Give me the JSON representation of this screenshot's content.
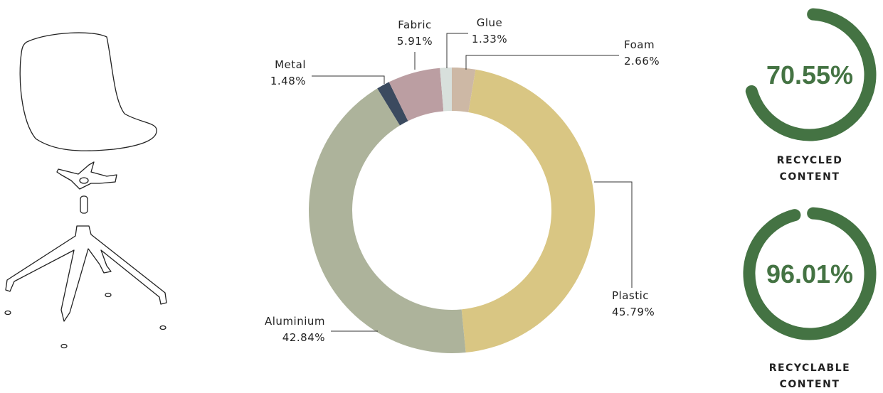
{
  "chart_data": [
    {
      "type": "donut",
      "categories": [
        "Foam",
        "Plastic",
        "Aluminium",
        "Metal",
        "Fabric",
        "Glue"
      ],
      "values": [
        2.66,
        45.79,
        42.84,
        1.48,
        5.91,
        1.33
      ],
      "value_labels": [
        "2.66%",
        "45.79%",
        "42.84%",
        "1.48%",
        "5.91%",
        "1.33%"
      ],
      "colors": [
        "#cdb8a5",
        "#d9c683",
        "#adb39b",
        "#3b4a5f",
        "#bb9ea2",
        "#d8e0dc"
      ]
    },
    {
      "type": "gauge",
      "value": 70.55,
      "value_label": "70.55%",
      "label": "RECYCLED CONTENT",
      "ylim": [
        0,
        100
      ],
      "color": "#447343"
    },
    {
      "type": "gauge",
      "value": 96.01,
      "value_label": "96.01%",
      "label": "RECYCLABLE CONTENT",
      "ylim": [
        0,
        100
      ],
      "color": "#447343"
    }
  ]
}
